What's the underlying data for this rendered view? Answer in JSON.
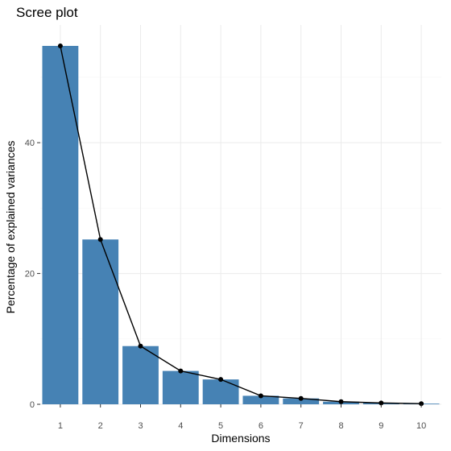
{
  "chart_data": {
    "type": "bar",
    "title": "Scree plot",
    "xlabel": "Dimensions",
    "ylabel": "Percentage of explained variances",
    "categories": [
      "1",
      "2",
      "3",
      "4",
      "5",
      "6",
      "7",
      "8",
      "9",
      "10"
    ],
    "values": [
      54.8,
      25.2,
      8.9,
      5.1,
      3.8,
      1.3,
      0.9,
      0.4,
      0.2,
      0.1
    ],
    "ylim": [
      0,
      58
    ],
    "y_ticks": [
      0,
      20,
      40
    ],
    "y_tick_labels": [
      "0",
      "20",
      "40"
    ],
    "has_line_overlay": true,
    "grid": true,
    "colors": {
      "bar": "#4682b4",
      "line": "#000000",
      "point": "#000000"
    }
  }
}
